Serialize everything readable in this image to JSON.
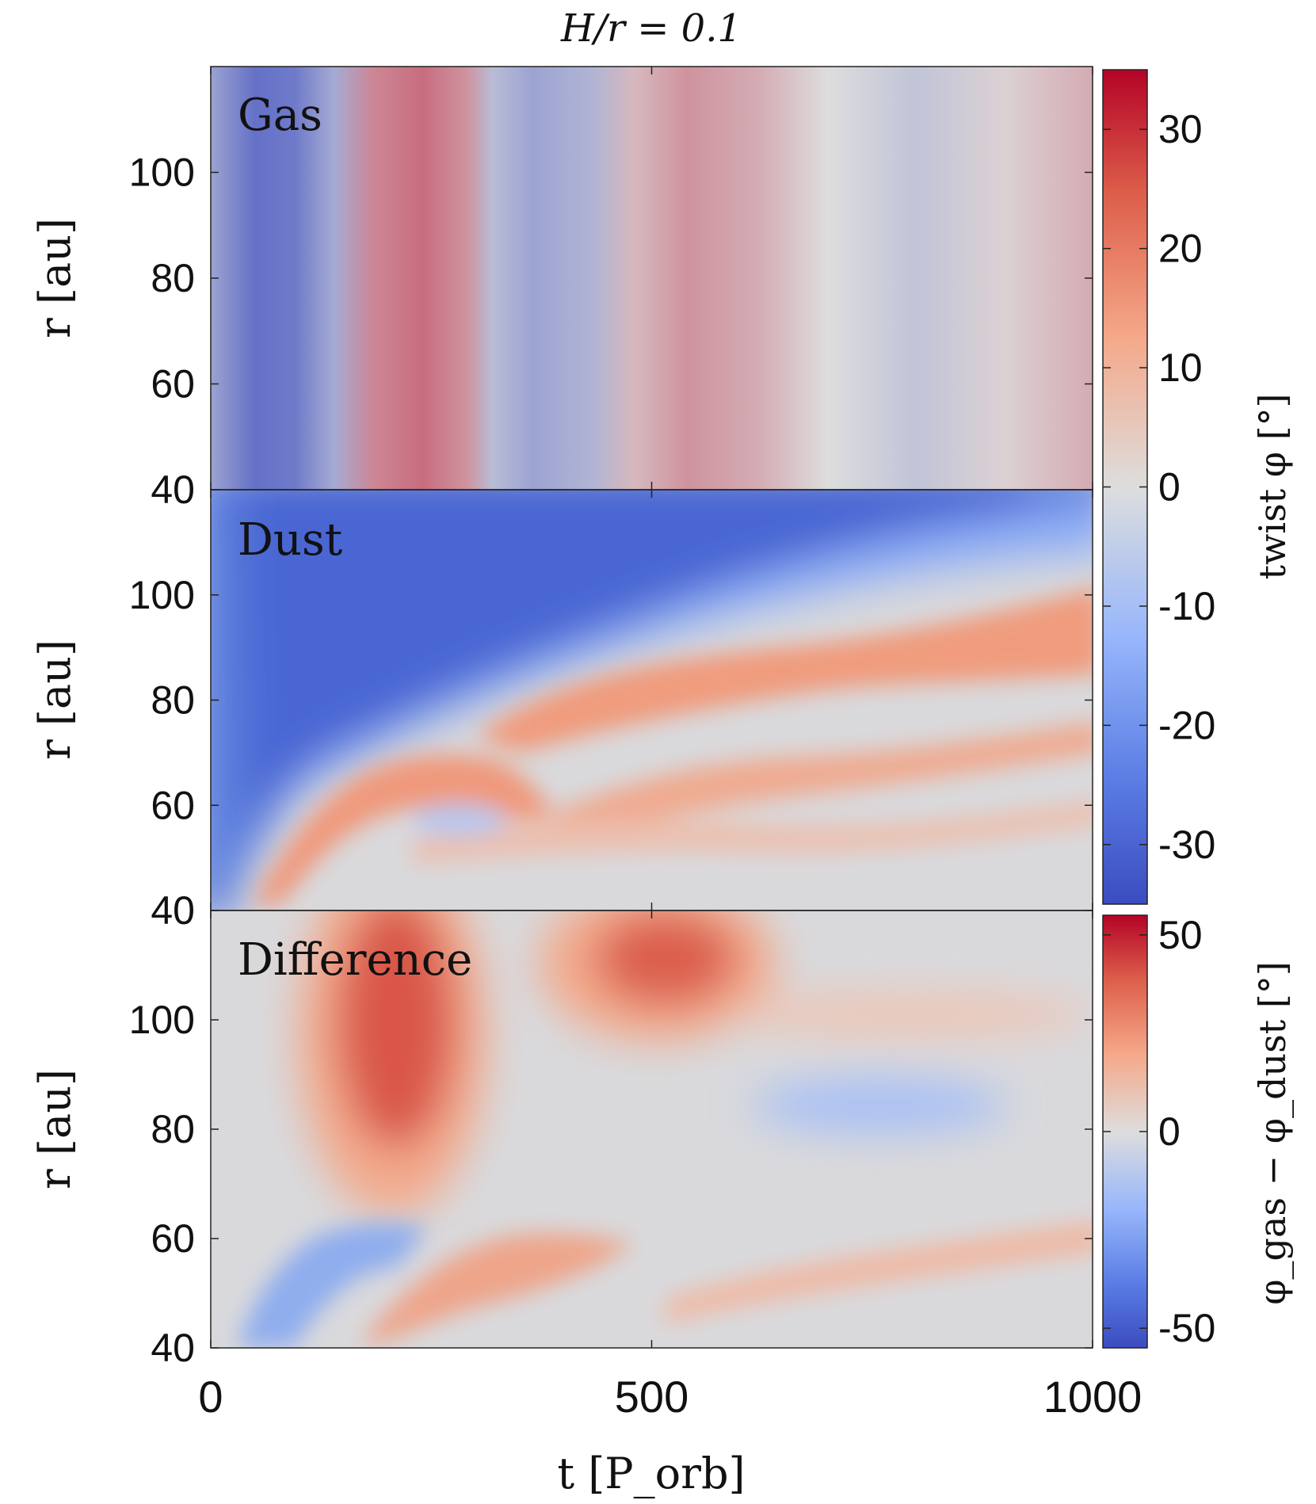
{
  "chart_data": {
    "type": "heatmap",
    "title": "H/r = 0.1",
    "xlabel": "t [P_orb]",
    "ylabel": "r [au]",
    "xlim": [
      0,
      1000
    ],
    "ylim": [
      40,
      120
    ],
    "x_ticks": [
      "0",
      "500",
      "1000"
    ],
    "y_ticks": [
      "40",
      "60",
      "80",
      "100"
    ],
    "grid": false,
    "colormap": {
      "low": "#3b4cc0",
      "mid": "#dddddd",
      "high": "#b40426"
    },
    "panels": [
      {
        "label": "Gas",
        "colorbar": "twist",
        "structure": "vertical bands; twist varies with t only",
        "profile_t": [
          0,
          50,
          95,
          140,
          185,
          240,
          290,
          320,
          365,
          430,
          480,
          540,
          620,
          700,
          800,
          900,
          1000
        ],
        "profile_value": [
          -14,
          -26,
          -24,
          -12,
          14,
          18,
          12,
          -8,
          -14,
          -10,
          6,
          12,
          8,
          0,
          -6,
          2,
          8
        ]
      },
      {
        "label": "Dust",
        "colorbar": "twist",
        "structure": "blue wedge at large r spreading with t; red ridges at smaller r rising with t; mostly near 0 at r < 60 late",
        "features": [
          {
            "kind": "region",
            "value": -26,
            "description": "outer disk, r > 90 au early, shrinking toward r > 105 au by t = 1000"
          },
          {
            "kind": "ridge",
            "value": 16,
            "t_range": [
              60,
              460
            ],
            "r_range": [
              45,
              68
            ]
          },
          {
            "kind": "ridge",
            "value": 16,
            "t_range": [
              450,
              1000
            ],
            "r_range": [
              70,
              97
            ]
          },
          {
            "kind": "ridge",
            "value": 10,
            "t_range": [
              560,
              1000
            ],
            "r_range": [
              62,
              75
            ]
          }
        ]
      },
      {
        "label": "Difference",
        "colorbar": "difference",
        "structure": "two red blobs at large r; weaker alternating ridges at small r",
        "features": [
          {
            "kind": "blob",
            "value": 44,
            "t_center": 240,
            "r_center": 98,
            "t_extent": [
              150,
              340
            ],
            "r_extent": [
              70,
              118
            ]
          },
          {
            "kind": "blob",
            "value": 40,
            "t_center": 550,
            "r_center": 112,
            "t_extent": [
              460,
              700
            ],
            "r_extent": [
              100,
              120
            ]
          },
          {
            "kind": "blob",
            "value": -16,
            "t_center": 800,
            "r_center": 86,
            "t_extent": [
              660,
              960
            ],
            "r_extent": [
              80,
              92
            ]
          }
        ]
      }
    ],
    "colorbars": {
      "twist": {
        "label": "twist φ [°]",
        "range": [
          -35,
          35
        ],
        "ticks": [
          "30",
          "20",
          "10",
          "0",
          "-10",
          "-20",
          "-30"
        ]
      },
      "difference": {
        "label": "φ_gas − φ_dust [°]",
        "range": [
          -55,
          55
        ],
        "ticks": [
          "50",
          "0",
          "-50"
        ]
      }
    }
  }
}
